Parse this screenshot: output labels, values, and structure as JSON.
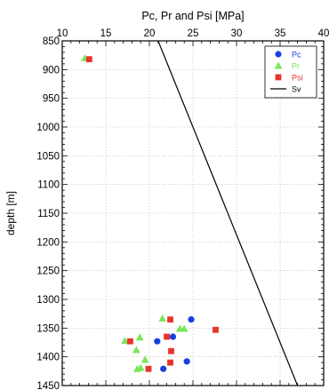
{
  "chart_data": {
    "type": "scatter",
    "title": "Pc, Pr and Psi [MPa]",
    "ylabel": "depth [m]",
    "xlabel": "",
    "xlim": [
      10,
      40
    ],
    "ylim": [
      850,
      1450
    ],
    "y_inverted": true,
    "x_axis_position": "top",
    "x_ticks": [
      10,
      15,
      20,
      25,
      30,
      35,
      40
    ],
    "x_tick_labels": [
      "10",
      "15",
      "20",
      "25",
      "30",
      "35",
      "40"
    ],
    "y_ticks": [
      850,
      900,
      950,
      1000,
      1050,
      1100,
      1150,
      1200,
      1250,
      1300,
      1350,
      1400,
      1450
    ],
    "y_tick_labels": [
      "850",
      "900",
      "950",
      "1000",
      "1050",
      "1100",
      "1150",
      "1200",
      "1250",
      "1300",
      "1350",
      "1400",
      "1450"
    ],
    "grid": true,
    "legend_position": "top-right",
    "series": [
      {
        "name": "Pc",
        "marker": "circle",
        "color": "#1a3fe0",
        "points": [
          [
            24.8,
            1335
          ],
          [
            22.7,
            1365
          ],
          [
            20.9,
            1373
          ],
          [
            24.3,
            1408
          ],
          [
            21.6,
            1421
          ]
        ]
      },
      {
        "name": "Pr",
        "marker": "triangle",
        "color": "#78e65a",
        "points": [
          [
            12.6,
            880
          ],
          [
            21.5,
            1333
          ],
          [
            23.5,
            1351
          ],
          [
            24.0,
            1351
          ],
          [
            18.9,
            1366
          ],
          [
            17.2,
            1372
          ],
          [
            18.5,
            1388
          ],
          [
            19.5,
            1405
          ],
          [
            19.0,
            1419
          ],
          [
            18.6,
            1421
          ]
        ]
      },
      {
        "name": "Psi",
        "marker": "square",
        "color": "#e8342c",
        "points": [
          [
            13.1,
            882
          ],
          [
            22.4,
            1335
          ],
          [
            27.6,
            1353
          ],
          [
            22.0,
            1365
          ],
          [
            17.8,
            1373
          ],
          [
            22.5,
            1390
          ],
          [
            22.4,
            1410
          ],
          [
            19.9,
            1421
          ]
        ]
      },
      {
        "name": "Sv",
        "type": "line",
        "color": "#000000",
        "points": [
          [
            21.0,
            850
          ],
          [
            37.0,
            1450
          ]
        ]
      }
    ]
  }
}
